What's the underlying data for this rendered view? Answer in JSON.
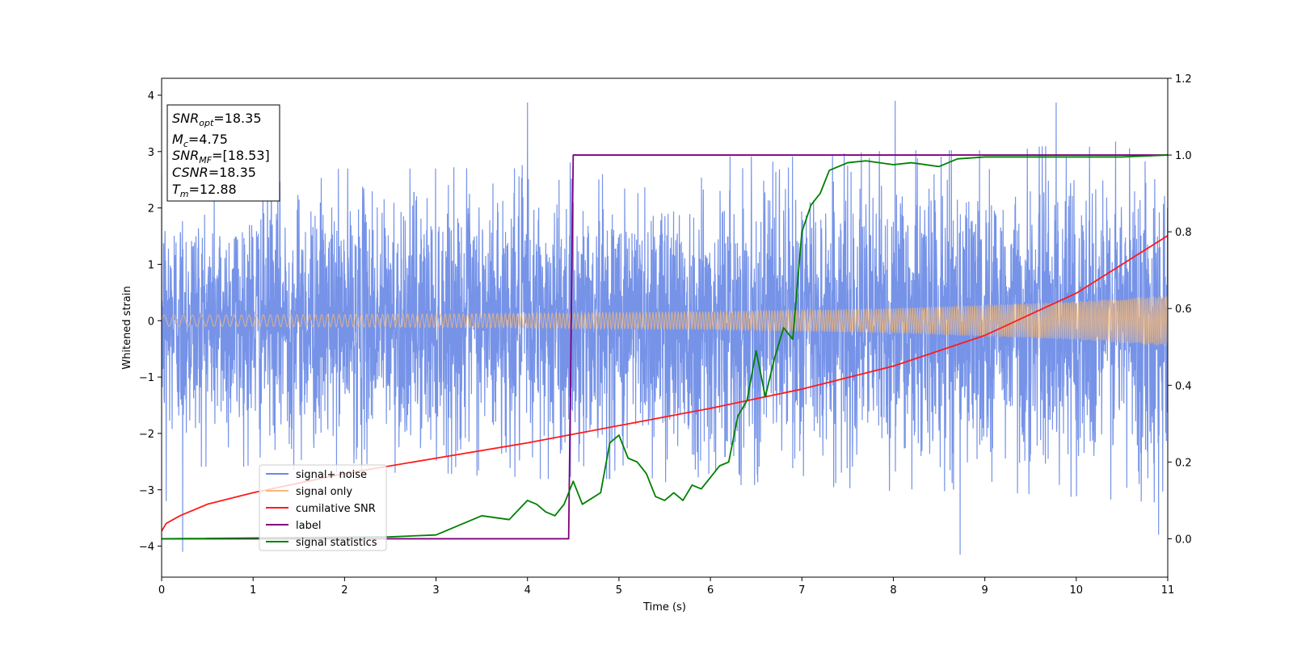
{
  "chart_data": {
    "type": "line",
    "xlabel": "Time (s)",
    "ylabel": "Whitened strain",
    "xlim": [
      0,
      11
    ],
    "ylim": [
      -4.55,
      4.3
    ],
    "y2lim": [
      -0.1,
      1.2
    ],
    "grid": false,
    "legend_position": "lower-left",
    "x_ticks": [
      "0",
      "1",
      "2",
      "3",
      "4",
      "5",
      "6",
      "7",
      "8",
      "9",
      "10",
      "11"
    ],
    "y_ticks": [
      "4",
      "3",
      "2",
      "1",
      "0",
      "−1",
      "−2",
      "−3",
      "−4"
    ],
    "y2_ticks": [
      "1.2",
      "1.0",
      "0.8",
      "0.6",
      "0.4",
      "0.2",
      "0.0"
    ],
    "series": [
      {
        "name": "signal+ noise",
        "color": "#6a8ae6",
        "axis": "left",
        "style": "dense noise, roughly within ±2.5 with spikes to ±4",
        "amplitude_envelope": [
          2.4,
          2.4,
          2.5,
          2.5,
          2.6,
          2.6,
          2.7,
          2.7,
          2.8,
          2.8,
          2.9,
          3.0
        ],
        "spikes": [
          [
            0.23,
            -4.1
          ],
          [
            1.2,
            3.1
          ],
          [
            4.0,
            3.87
          ],
          [
            8.02,
            3.9
          ],
          [
            8.73,
            -4.15
          ],
          [
            9.78,
            3.87
          ],
          [
            10.9,
            -3.8
          ],
          [
            0.05,
            -3.2
          ]
        ]
      },
      {
        "name": "signal only",
        "color": "#f5b875",
        "axis": "left",
        "style": "chirp with growing amplitude",
        "x": [
          0,
          2,
          4,
          6,
          8,
          10,
          11
        ],
        "amplitude": [
          0.1,
          0.11,
          0.13,
          0.16,
          0.22,
          0.34,
          0.45
        ]
      },
      {
        "name": "cumilative SNR",
        "color": "#ff1a1a",
        "axis": "right",
        "x": [
          0,
          0.05,
          0.2,
          0.5,
          1,
          2,
          3,
          4,
          5,
          6,
          7,
          8,
          9,
          10,
          11
        ],
        "y": [
          0.02,
          0.04,
          0.06,
          0.09,
          0.12,
          0.17,
          0.21,
          0.25,
          0.295,
          0.34,
          0.39,
          0.45,
          0.53,
          0.64,
          0.79
        ]
      },
      {
        "name": "label",
        "color": "#800080",
        "axis": "right",
        "x": [
          0,
          4.45,
          4.5,
          11
        ],
        "y": [
          0,
          0,
          1,
          1
        ]
      },
      {
        "name": "signal statistics",
        "color": "#008000",
        "axis": "right",
        "x": [
          0,
          2.5,
          3,
          3.3,
          3.5,
          3.8,
          4.0,
          4.1,
          4.2,
          4.3,
          4.4,
          4.5,
          4.6,
          4.8,
          4.9,
          5.0,
          5.05,
          5.1,
          5.2,
          5.3,
          5.4,
          5.5,
          5.6,
          5.7,
          5.8,
          5.9,
          6.0,
          6.1,
          6.2,
          6.3,
          6.4,
          6.5,
          6.6,
          6.7,
          6.8,
          6.9,
          7.0,
          7.1,
          7.2,
          7.3,
          7.4,
          7.5,
          7.7,
          8.0,
          8.2,
          8.5,
          8.7,
          9.0,
          9.5,
          10.0,
          10.5,
          11
        ],
        "y": [
          0,
          0.005,
          0.01,
          0.04,
          0.06,
          0.05,
          0.1,
          0.09,
          0.07,
          0.06,
          0.09,
          0.15,
          0.09,
          0.12,
          0.25,
          0.27,
          0.24,
          0.21,
          0.2,
          0.17,
          0.11,
          0.1,
          0.12,
          0.1,
          0.14,
          0.13,
          0.16,
          0.19,
          0.2,
          0.32,
          0.36,
          0.49,
          0.37,
          0.47,
          0.55,
          0.52,
          0.8,
          0.87,
          0.9,
          0.96,
          0.97,
          0.98,
          0.985,
          0.975,
          0.98,
          0.97,
          0.99,
          0.995,
          0.995,
          0.995,
          0.995,
          1.0
        ]
      }
    ],
    "info_box": [
      {
        "sym": "SNR",
        "sub": "opt",
        "val": "=18.35"
      },
      {
        "sym": "M",
        "sub": "c",
        "val": "=4.75"
      },
      {
        "sym": "SNR",
        "sub": "MF",
        "val": "=[18.53]"
      },
      {
        "sym": "CSNR",
        "sub": "",
        "val": "=18.35"
      },
      {
        "sym": "T",
        "sub": "m",
        "val": "=12.88"
      }
    ]
  }
}
